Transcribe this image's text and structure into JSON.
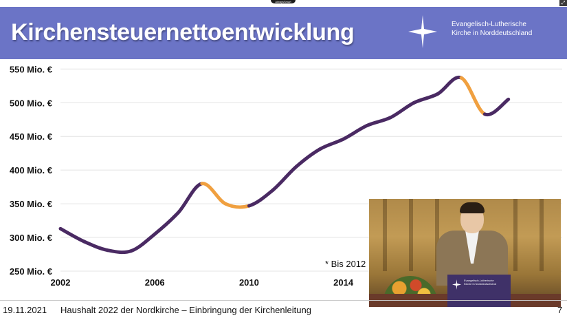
{
  "top_badge": "AlwaysSmart",
  "header": {
    "title": "Kirchensteuernettoentwicklung",
    "org_line1": "Evangelisch-Lutherische",
    "org_line2": "Kirche in Norddeutschland",
    "logo_icon": "cross-icon"
  },
  "colors": {
    "header_bg": "#6b74c6",
    "line_main": "#4a2a63",
    "line_highlight": "#f0a040"
  },
  "chart_data": {
    "type": "line",
    "x_ticks": [
      "2002",
      "2006",
      "2010",
      "2014"
    ],
    "y_ticks": [
      "250 Mio. €",
      "300 Mio. €",
      "350 Mio. €",
      "400 Mio. €",
      "450 Mio. €",
      "500 Mio. €",
      "550 Mio. €"
    ],
    "ylim": [
      250,
      550
    ],
    "xlim": [
      2002,
      2021
    ],
    "grid": "horizontal",
    "x": [
      2002,
      2003,
      2004,
      2005,
      2006,
      2007,
      2008,
      2009,
      2010,
      2011,
      2012,
      2013,
      2014,
      2015,
      2016,
      2017,
      2018,
      2019,
      2020,
      2021
    ],
    "y": [
      313,
      294,
      281,
      280,
      305,
      337,
      380,
      350,
      347,
      370,
      405,
      431,
      446,
      466,
      478,
      500,
      513,
      537,
      483,
      505
    ],
    "highlight_segments": [
      [
        2008,
        2010
      ],
      [
        2019,
        2020
      ]
    ],
    "annotation": "* Bis 2012"
  },
  "footer": {
    "date": "19.11.2021",
    "title": "Haushalt 2022 der Nordkirche – Einbringung der Kirchenleitung",
    "page": "7"
  },
  "video": {
    "podium_line1": "Evangelisch-Lutherische",
    "podium_line2": "Kirche in Norddeutschland"
  }
}
